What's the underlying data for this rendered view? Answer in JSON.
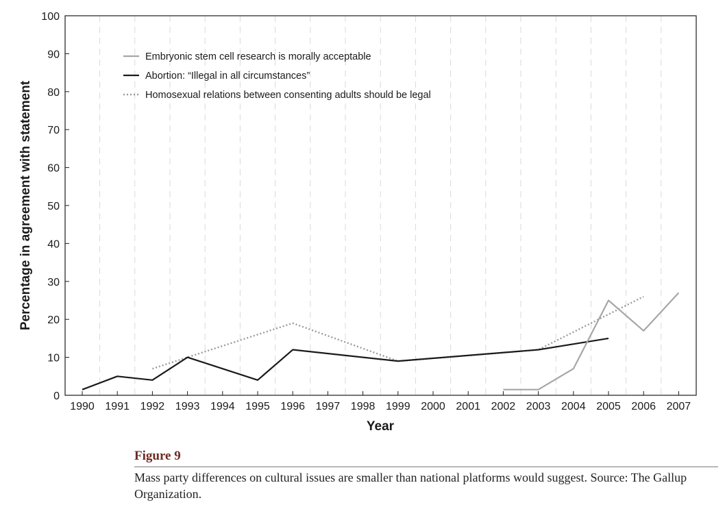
{
  "chart_data": {
    "type": "line",
    "title": "",
    "xlabel": "Year",
    "ylabel": "Percentage in agreement with statement",
    "ylim": [
      0,
      100
    ],
    "yticks": [
      "0",
      "10",
      "20",
      "30",
      "40",
      "50",
      "60",
      "70",
      "80",
      "90",
      "100"
    ],
    "categories": [
      "1990",
      "1991",
      "1992",
      "1993",
      "1994",
      "1995",
      "1996",
      "1997",
      "1998",
      "1999",
      "2000",
      "2001",
      "2002",
      "2003",
      "2004",
      "2005",
      "2006",
      "2007"
    ],
    "legend_position": "top-left",
    "grid": "vertical dashed lines",
    "series": [
      {
        "name": "Embryonic stem cell research is morally acceptable",
        "color": "#a6a6a6",
        "style": "solid",
        "points": [
          [
            2002,
            1.5
          ],
          [
            2003,
            1.5
          ],
          [
            2004,
            7
          ],
          [
            2005,
            25
          ],
          [
            2006,
            17
          ],
          [
            2007,
            27
          ]
        ]
      },
      {
        "name": "Abortion: “Illegal in all circumstances”",
        "color": "#1a1a1a",
        "style": "solid",
        "points": [
          [
            1990,
            1.5
          ],
          [
            1991,
            5
          ],
          [
            1992,
            4
          ],
          [
            1993,
            10
          ],
          [
            1995,
            4
          ],
          [
            1996,
            12
          ],
          [
            1999,
            9
          ],
          [
            2003,
            12
          ],
          [
            2005,
            15
          ]
        ]
      },
      {
        "name": "Homosexual relations between consenting adults should be legal",
        "color": "#9a9a9a",
        "style": "dotted",
        "points": [
          [
            1992,
            7
          ],
          [
            1993,
            10
          ],
          [
            1996,
            19
          ],
          [
            1999,
            9
          ],
          [
            2003,
            12
          ],
          [
            2006,
            26
          ]
        ]
      }
    ]
  },
  "caption": {
    "figure_label": "Figure 9",
    "text": "Mass party differences on cultural issues are smaller than national platforms would suggest. Source: The Gallup Organization."
  }
}
